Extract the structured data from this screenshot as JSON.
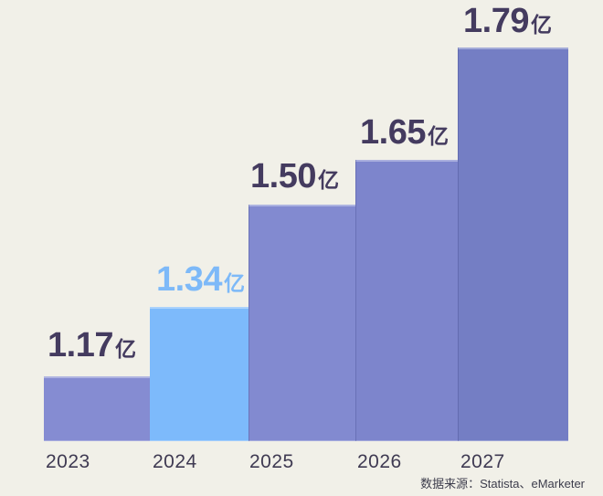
{
  "chart_data": {
    "type": "bar",
    "categories": [
      "2023",
      "2024",
      "2025",
      "2026",
      "2027"
    ],
    "values": [
      1.17,
      1.34,
      1.5,
      1.65,
      1.79
    ],
    "unit": "亿",
    "highlighted_category": "2024",
    "grid": false,
    "axes_hidden": true,
    "style_note": "stylized staircase infographic; bar heights not proportional to values",
    "bars": [
      {
        "year": "2023",
        "value": "1.17",
        "unit": "亿",
        "color": "#858cd2",
        "label_color": "#443b5f"
      },
      {
        "year": "2024",
        "value": "1.34",
        "unit": "亿",
        "color": "#7dbafb",
        "label_color": "#7db9f8"
      },
      {
        "year": "2025",
        "value": "1.50",
        "unit": "亿",
        "color": "#828ad0",
        "label_color": "#443b5f"
      },
      {
        "year": "2026",
        "value": "1.65",
        "unit": "亿",
        "color": "#7d85cc",
        "label_color": "#443b5f"
      },
      {
        "year": "2027",
        "value": "1.79",
        "unit": "亿",
        "color": "#747ec4",
        "label_color": "#443b5f"
      }
    ],
    "source_note": "数据来源：Statista、eMarketer",
    "colors": {
      "background": "#f1f0e8",
      "value_label": "#443b5f",
      "highlight_label": "#7db9f8",
      "year_text": "#3f3a52",
      "source_text": "#3d3d4c"
    }
  }
}
